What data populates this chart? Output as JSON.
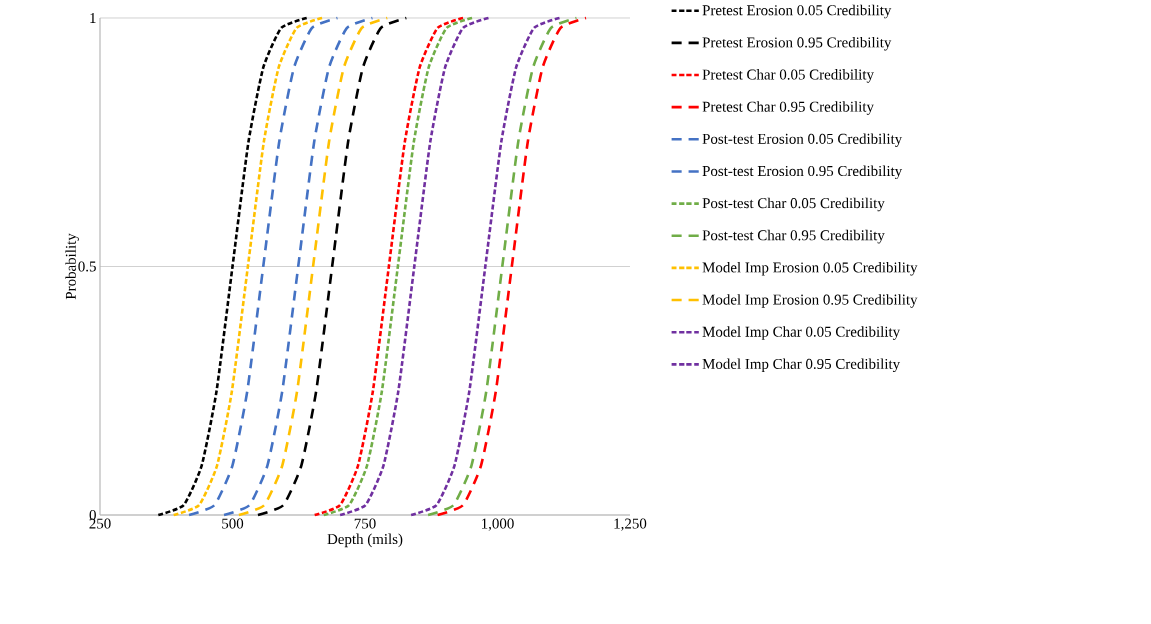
{
  "chart_data": {
    "type": "line",
    "xlabel": "Depth (mils)",
    "ylabel": "Probability",
    "xlim": [
      250,
      1250
    ],
    "ylim": [
      0,
      1
    ],
    "xticks": [
      250,
      500,
      750,
      {
        "value": 1000,
        "label": "1,000"
      },
      {
        "value": 1250,
        "label": "1,250"
      }
    ],
    "yticks": [
      0,
      0.5,
      1
    ],
    "grid": "y",
    "legend": "right",
    "series": [
      {
        "name": "Pretest Erosion 0.05 Credibility",
        "color": "#000000",
        "line_style": "dotted",
        "x": [
          360,
          408,
          442,
          470,
          500,
          530,
          558,
          592,
          640
        ],
        "values": [
          0,
          0.02,
          0.1,
          0.25,
          0.5,
          0.75,
          0.9,
          0.98,
          1
        ]
      },
      {
        "name": "Pretest Erosion 0.95 Credibility",
        "color": "#000000",
        "line_style": "dashed",
        "x": [
          548,
          596,
          630,
          658,
          688,
          718,
          746,
          780,
          828
        ],
        "values": [
          0,
          0.02,
          0.1,
          0.25,
          0.5,
          0.75,
          0.9,
          0.98,
          1
        ]
      },
      {
        "name": "Pretest Char 0.05 Credibility",
        "color": "#ff0000",
        "line_style": "dotted",
        "x": [
          655,
          703,
          737,
          765,
          795,
          825,
          853,
          887,
          935
        ],
        "values": [
          0,
          0.02,
          0.1,
          0.25,
          0.5,
          0.75,
          0.9,
          0.98,
          1
        ]
      },
      {
        "name": "Pretest Char 0.95 Credibility",
        "color": "#ff0000",
        "line_style": "dashed",
        "x": [
          887,
          935,
          969,
          997,
          1027,
          1057,
          1085,
          1119,
          1167
        ],
        "values": [
          0,
          0.02,
          0.1,
          0.25,
          0.5,
          0.75,
          0.9,
          0.98,
          1
        ]
      },
      {
        "name": "Post-test Erosion 0.05 Credibility",
        "color": "#4472c4",
        "line_style": "dashed",
        "x": [
          418,
          466,
          500,
          528,
          558,
          588,
          616,
          650,
          698
        ],
        "values": [
          0,
          0.02,
          0.1,
          0.25,
          0.5,
          0.75,
          0.9,
          0.98,
          1
        ]
      },
      {
        "name": "Post-test Erosion 0.95 Credibility",
        "color": "#4472c4",
        "line_style": "dashed",
        "x": [
          484,
          532,
          566,
          594,
          624,
          654,
          682,
          716,
          764
        ],
        "values": [
          0,
          0.02,
          0.1,
          0.25,
          0.5,
          0.75,
          0.9,
          0.98,
          1
        ]
      },
      {
        "name": "Post-test Char 0.05 Credibility",
        "color": "#70ad47",
        "line_style": "dotted",
        "x": [
          672,
          720,
          754,
          782,
          812,
          842,
          870,
          904,
          952
        ],
        "values": [
          0,
          0.02,
          0.1,
          0.25,
          0.5,
          0.75,
          0.9,
          0.98,
          1
        ]
      },
      {
        "name": "Post-test Char 0.95 Credibility",
        "color": "#70ad47",
        "line_style": "dashed",
        "x": [
          869,
          917,
          951,
          979,
          1009,
          1039,
          1067,
          1101,
          1149
        ],
        "values": [
          0,
          0.02,
          0.1,
          0.25,
          0.5,
          0.75,
          0.9,
          0.98,
          1
        ]
      },
      {
        "name": "Model Imp Erosion 0.05 Credibility",
        "color": "#ffc000",
        "line_style": "dotted",
        "x": [
          389,
          437,
          471,
          499,
          529,
          559,
          587,
          621,
          669
        ],
        "values": [
          0,
          0.02,
          0.1,
          0.25,
          0.5,
          0.75,
          0.9,
          0.98,
          1
        ]
      },
      {
        "name": "Model Imp Erosion 0.95 Credibility",
        "color": "#ffc000",
        "line_style": "dashed",
        "x": [
          512,
          560,
          594,
          622,
          652,
          682,
          710,
          744,
          792
        ],
        "values": [
          0,
          0.02,
          0.1,
          0.25,
          0.5,
          0.75,
          0.9,
          0.98,
          1
        ]
      },
      {
        "name": "Model Imp Char 0.05 Credibility",
        "color": "#7030a0",
        "line_style": "dotted",
        "x": [
          703,
          751,
          785,
          813,
          843,
          873,
          901,
          935,
          983
        ],
        "values": [
          0,
          0.02,
          0.1,
          0.25,
          0.5,
          0.75,
          0.9,
          0.98,
          1
        ]
      },
      {
        "name": "Model Imp Char 0.95 Credibility",
        "color": "#7030a0",
        "line_style": "dotted",
        "x": [
          837,
          885,
          919,
          947,
          977,
          1007,
          1035,
          1069,
          1117
        ],
        "values": [
          0,
          0.02,
          0.1,
          0.25,
          0.5,
          0.75,
          0.9,
          0.98,
          1
        ]
      }
    ]
  }
}
